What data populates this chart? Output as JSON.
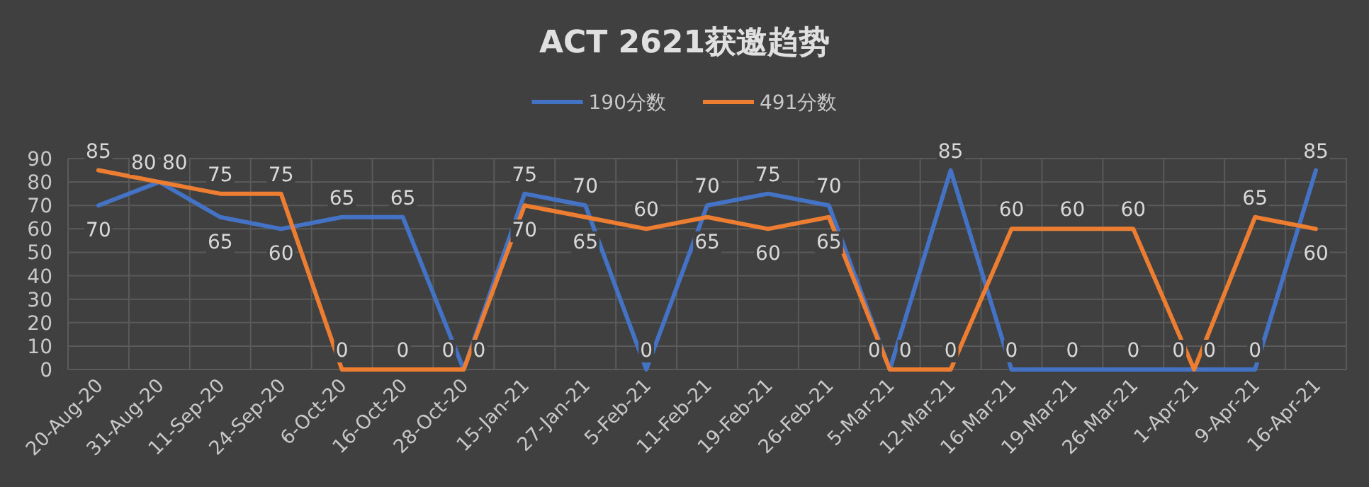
{
  "chart_data": {
    "type": "line",
    "title": "ACT 2621获邀趋势",
    "categories": [
      "20-Aug-20",
      "31-Aug-20",
      "11-Sep-20",
      "24-Sep-20",
      "6-Oct-20",
      "16-Oct-20",
      "28-Oct-20",
      "15-Jan-21",
      "27-Jan-21",
      "5-Feb-21",
      "11-Feb-21",
      "19-Feb-21",
      "26-Feb-21",
      "5-Mar-21",
      "12-Mar-21",
      "16-Mar-21",
      "19-Mar-21",
      "26-Mar-21",
      "1-Apr-21",
      "9-Apr-21",
      "16-Apr-21"
    ],
    "series": [
      {
        "name": "190分数",
        "color": "#4472c4",
        "values": [
          70,
          80,
          65,
          60,
          65,
          65,
          0,
          75,
          70,
          0,
          70,
          75,
          70,
          0,
          85,
          0,
          0,
          0,
          0,
          0,
          85
        ]
      },
      {
        "name": "491分数",
        "color": "#ed7d31",
        "values": [
          85,
          80,
          75,
          75,
          0,
          0,
          0,
          70,
          65,
          60,
          65,
          60,
          65,
          0,
          0,
          60,
          60,
          60,
          0,
          65,
          60
        ]
      }
    ],
    "ylim": [
      0,
      90
    ],
    "yticks": [
      0,
      10,
      20,
      30,
      40,
      50,
      60,
      70,
      80,
      90
    ],
    "grid": true,
    "legend": "top",
    "data_labels": true,
    "marker": "none",
    "line_style": "solid"
  }
}
